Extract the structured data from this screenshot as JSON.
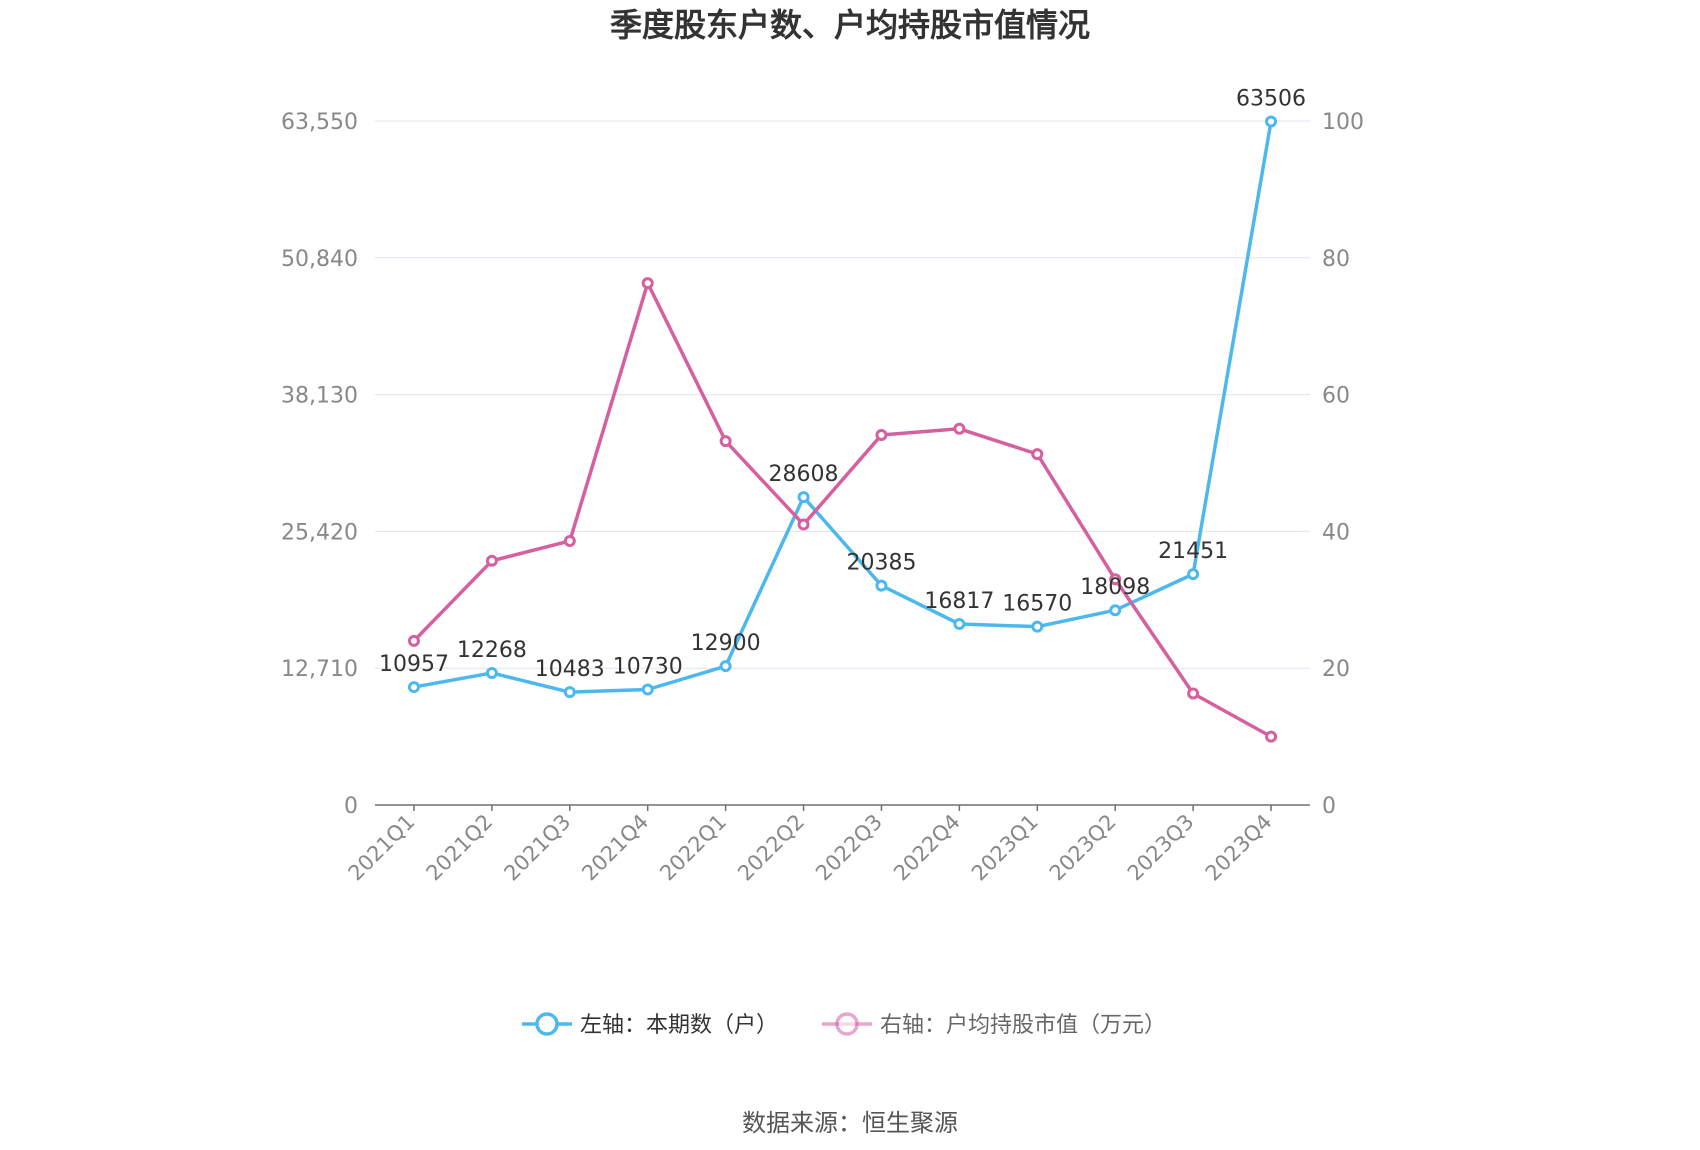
{
  "chart_data": {
    "type": "line",
    "title": "季度股东户数、户均持股市值情况",
    "categories": [
      "2021Q1",
      "2021Q2",
      "2021Q3",
      "2021Q4",
      "2022Q1",
      "2022Q2",
      "2022Q3",
      "2022Q4",
      "2023Q1",
      "2023Q2",
      "2023Q3",
      "2023Q4"
    ],
    "left_axis": {
      "min": 0,
      "max": 63550,
      "ticks": [
        "0",
        "12,710",
        "25,420",
        "38,130",
        "50,840",
        "63,550"
      ],
      "tick_values": [
        0,
        12710,
        25420,
        38130,
        50840,
        63550
      ]
    },
    "right_axis": {
      "min": 0,
      "max": 100,
      "ticks": [
        "0",
        "20",
        "40",
        "60",
        "80",
        "100"
      ],
      "tick_values": [
        0,
        20,
        40,
        60,
        80,
        100
      ]
    },
    "series": [
      {
        "name": "左轴：本期数（户）",
        "axis": "left",
        "color": "#4db8ee",
        "values": [
          10957,
          12268,
          10483,
          10730,
          12900,
          28608,
          20385,
          16817,
          16570,
          18098,
          21451,
          63506
        ],
        "labels": [
          "10957",
          "12268",
          "10483",
          "10730",
          "12900",
          "28608",
          "20385",
          "16817",
          "16570",
          "18098",
          "21451",
          "63506"
        ]
      },
      {
        "name": "右轴：户均持股市值（万元）",
        "axis": "right",
        "color": "#d6609f",
        "values": [
          24.0,
          35.7,
          38.6,
          76.3,
          53.2,
          41.0,
          54.1,
          55.0,
          51.3,
          33.0,
          16.3,
          10.0
        ]
      }
    ],
    "grid": true,
    "legend": "bottom-center"
  },
  "source": "数据来源：恒生聚源"
}
